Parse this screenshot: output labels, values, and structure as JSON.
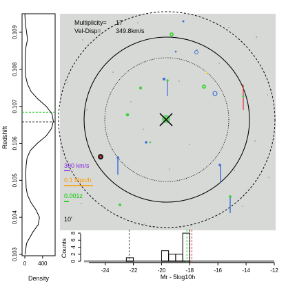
{
  "sky_panel": {
    "multiplicity_label": "Multiplicity=",
    "multiplicity_value": "17",
    "veldisp_label": "Vel-Disp=",
    "veldisp_value": "349.8km/s",
    "scale_velocity": "300 km/s",
    "scale_distance": "0.1 Mpc/h",
    "scale_redshift": "0.001z",
    "angle_label": "10'",
    "colors": {
      "background": "#d7d9d7",
      "velocity_bar": "#8a2be2",
      "distance_bar": "#ff9900",
      "redshift_bar": "#00cc00",
      "member_blue": "#3b6bd6",
      "member_red": "#e03030",
      "member_green": "#44d044",
      "centre_cross": "#111111"
    }
  },
  "chart_data": [
    {
      "type": "line",
      "name": "redshift-density",
      "xlabel": "Density",
      "ylabel": "Redshift",
      "xlim": [
        0,
        650
      ],
      "ylim": [
        0.103,
        0.1095
      ],
      "x_ticks": [
        0,
        400
      ],
      "y_ticks": [
        0.103,
        0.104,
        0.105,
        0.106,
        0.107,
        0.108,
        0.109
      ],
      "density_curve": {
        "z": [
          0.103,
          0.1033,
          0.1036,
          0.1038,
          0.104,
          0.1042,
          0.1044,
          0.1046,
          0.1048,
          0.105,
          0.1052,
          0.1054,
          0.1056,
          0.1058,
          0.106,
          0.1062,
          0.1064,
          0.1066,
          0.1068,
          0.107,
          0.1072,
          0.1074,
          0.1076,
          0.1078,
          0.108,
          0.1082,
          0.1084,
          0.1086,
          0.1088,
          0.109,
          0.1092,
          0.1094,
          0.1095
        ],
        "density": [
          5,
          40,
          180,
          300,
          330,
          250,
          140,
          60,
          30,
          25,
          20,
          30,
          50,
          120,
          280,
          480,
          600,
          640,
          610,
          480,
          290,
          140,
          60,
          20,
          10,
          8,
          12,
          25,
          60,
          40,
          15,
          5,
          2
        ]
      },
      "reference_lines": [
        {
          "z": 0.10684,
          "color": "#22cc22",
          "style": "dashed"
        },
        {
          "z": 0.10658,
          "color": "#000000",
          "style": "dashed"
        }
      ]
    },
    {
      "type": "bar",
      "name": "magnitude-histogram",
      "xlabel": "Mr - 5log10h",
      "ylabel": "Counts",
      "xlim": [
        -25.5,
        -12
      ],
      "ylim": [
        0,
        9
      ],
      "x_ticks": [
        -24,
        -22,
        -20,
        -18,
        -16,
        -14,
        -12
      ],
      "y_ticks": [
        0,
        2,
        4,
        6,
        8
      ],
      "bin_edges": [
        -22.5,
        -22.0,
        -20.0,
        -19.5,
        -19.0,
        -18.5,
        -18.0
      ],
      "counts": [
        1,
        0,
        3,
        2,
        2,
        8
      ],
      "reference_lines": [
        {
          "x": -22.3,
          "color": "#555555",
          "style": "dashed"
        },
        {
          "x": -18.2,
          "color": "#22cc22",
          "style": "dashed"
        },
        {
          "x": -18.0,
          "color": "#000000",
          "style": "dashed"
        },
        {
          "x": -17.85,
          "color": "#e03030",
          "style": "dashed"
        }
      ]
    }
  ]
}
